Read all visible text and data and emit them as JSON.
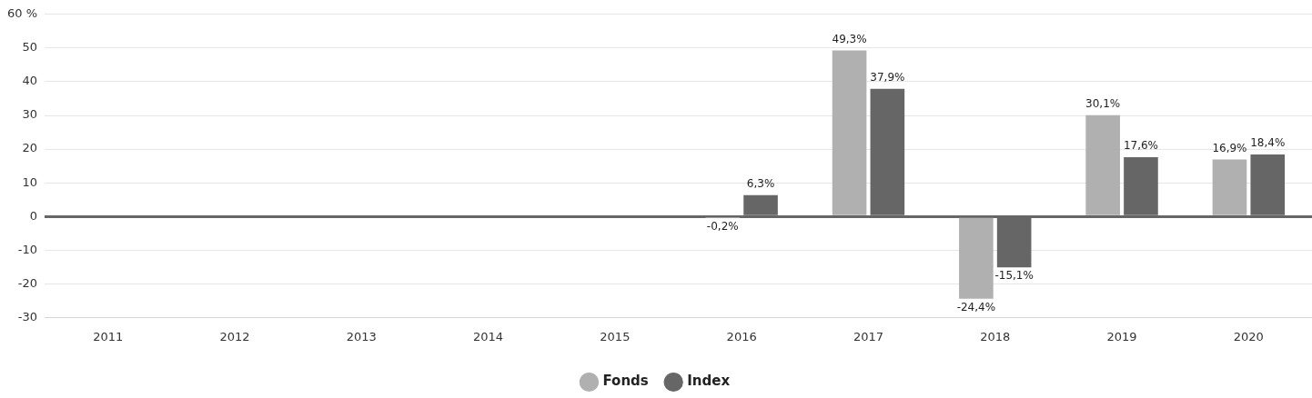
{
  "chart_data": {
    "type": "bar",
    "categories": [
      "2011",
      "2012",
      "2013",
      "2014",
      "2015",
      "2016",
      "2017",
      "2018",
      "2019",
      "2020"
    ],
    "series": [
      {
        "name": "Fonds",
        "color": "#b0b0b0",
        "values": [
          null,
          null,
          null,
          null,
          null,
          -0.2,
          49.3,
          -24.4,
          30.1,
          16.9
        ],
        "value_labels": [
          null,
          null,
          null,
          null,
          null,
          "-0,2%",
          "49,3%",
          "-24,4%",
          "30,1%",
          "16,9%"
        ]
      },
      {
        "name": "Index",
        "color": "#666666",
        "values": [
          null,
          null,
          null,
          null,
          null,
          6.3,
          37.9,
          -15.1,
          17.6,
          18.4
        ],
        "value_labels": [
          null,
          null,
          null,
          null,
          null,
          "6,3%",
          "37,9%",
          "-15,1%",
          "17,6%",
          "18,4%"
        ]
      }
    ],
    "ylim": [
      -30,
      60
    ],
    "yticks": [
      -30,
      -20,
      -10,
      0,
      10,
      20,
      30,
      40,
      50,
      {
        "value": 60,
        "label": "60 %"
      }
    ],
    "grid": "y",
    "legend": "bottom",
    "marker": "circle"
  }
}
